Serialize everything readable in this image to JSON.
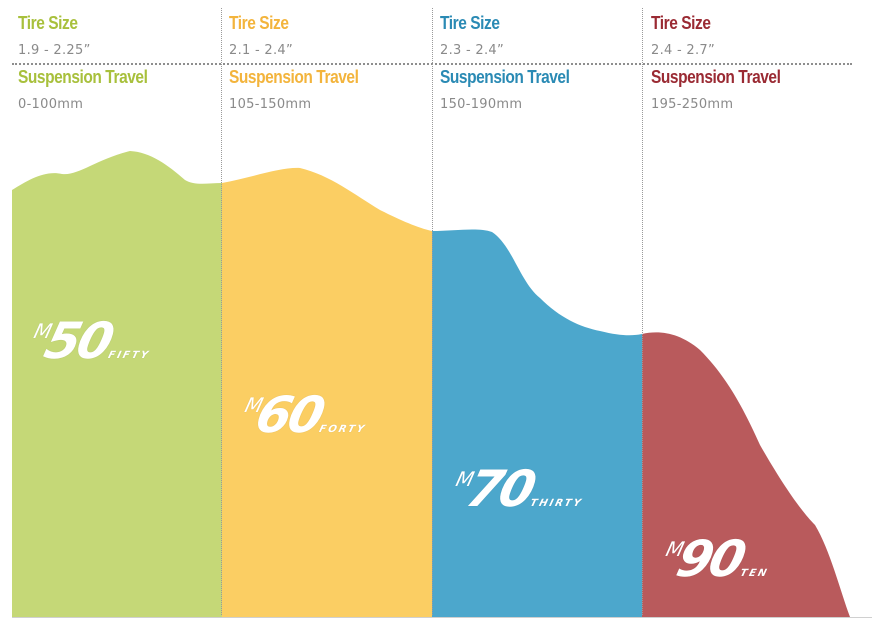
{
  "columns": [
    {
      "tire_label": "Tire Size",
      "tire_value": "1.9 - 2.25”",
      "susp_label": "Suspension Travel",
      "susp_value": "0-100mm",
      "color": "#c5d877",
      "label_color": "#a8c03c",
      "model_prefix": "M",
      "model_number": "50",
      "model_suffix": "FIFTY"
    },
    {
      "tire_label": "Tire Size",
      "tire_value": "2.1 - 2.4”",
      "susp_label": "Suspension Travel",
      "susp_value": "105-150mm",
      "color": "#fbce63",
      "label_color": "#f3b43c",
      "model_prefix": "M",
      "model_number": "60",
      "model_suffix": "FORTY"
    },
    {
      "tire_label": "Tire Size",
      "tire_value": "2.3 - 2.4”",
      "susp_label": "Suspension Travel",
      "susp_value": "150-190mm",
      "color": "#4ca7cc",
      "label_color": "#2a8ab4",
      "model_prefix": "M",
      "model_number": "70",
      "model_suffix": "THIRTY"
    },
    {
      "tire_label": "Tire Size",
      "tire_value": "2.4 - 2.7”",
      "susp_label": "Suspension Travel",
      "susp_value": "195-250mm",
      "color": "#b95a5c",
      "label_color": "#9a2a33",
      "model_prefix": "M",
      "model_number": "90",
      "model_suffix": "TEN"
    }
  ]
}
